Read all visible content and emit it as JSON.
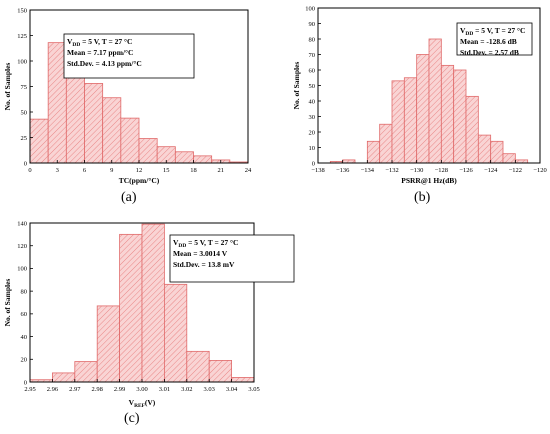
{
  "colors": {
    "bar_fill": "#f9d4d4",
    "bar_stroke": "#e06a6a",
    "hatch": "#e98686",
    "axis": "#000000",
    "box_border": "#000000"
  },
  "chart_data": [
    {
      "type": "bar",
      "panel": "(a)",
      "xlabel": "TC(ppm/°C)",
      "ylabel": "No. of Samples",
      "xlim": [
        0,
        24
      ],
      "ylim": [
        0,
        150
      ],
      "xticks": [
        "0",
        "3",
        "6",
        "9",
        "12",
        "15",
        "18",
        "21",
        "24"
      ],
      "yticks": [
        "0",
        "25",
        "50",
        "75",
        "100",
        "125",
        "150"
      ],
      "bin_edges": [
        0,
        2,
        4,
        6,
        8,
        10,
        12,
        14,
        16,
        18,
        20,
        22,
        24
      ],
      "values": [
        43,
        118,
        91,
        78,
        64,
        44,
        24,
        16,
        11,
        7,
        3,
        1
      ],
      "annotation": [
        "V_DD = 5 V, T = 27 °C",
        "Mean = 7.17 ppm/°C",
        "Std.Dev. = 4.13 ppm/°C"
      ]
    },
    {
      "type": "bar",
      "panel": "(b)",
      "xlabel": "PSRR@1 Hz(dB)",
      "ylabel": "No. of Samples",
      "xlim": [
        -138,
        -120
      ],
      "ylim": [
        0,
        100
      ],
      "xticks": [
        "−138",
        "−136",
        "−134",
        "−132",
        "−130",
        "−128",
        "−126",
        "−124",
        "−122",
        "−120"
      ],
      "yticks": [
        "0",
        "10",
        "20",
        "30",
        "40",
        "50",
        "60",
        "70",
        "80",
        "90",
        "100"
      ],
      "bin_edges": [
        -137,
        -136,
        -135,
        -134,
        -133,
        -132,
        -131,
        -130,
        -129,
        -128,
        -127,
        -126,
        -125,
        -124,
        -123,
        -122,
        -121
      ],
      "values": [
        1,
        2,
        0,
        14,
        25,
        53,
        55,
        70,
        80,
        63,
        60,
        43,
        18,
        14,
        6,
        2
      ],
      "annotation": [
        "V_DD = 5 V, T = 27 °C",
        "Mean = -128.6 dB",
        "Std.Dev. = 2.57 dB"
      ]
    },
    {
      "type": "bar",
      "panel": "(c)",
      "xlabel": "V_REF(V)",
      "ylabel": "No. of Samples",
      "xlim": [
        2.95,
        3.05
      ],
      "ylim": [
        0,
        140
      ],
      "xticks": [
        "2.95",
        "2.96",
        "2.97",
        "2.98",
        "2.99",
        "3.00",
        "3.01",
        "3.02",
        "3.03",
        "3.04",
        "3.05"
      ],
      "yticks": [
        "0",
        "20",
        "40",
        "60",
        "80",
        "100",
        "120",
        "140"
      ],
      "bin_edges": [
        2.95,
        2.96,
        2.97,
        2.98,
        2.99,
        3.0,
        3.01,
        3.02,
        3.03,
        3.04,
        3.05
      ],
      "values": [
        2,
        8,
        18,
        67,
        130,
        139,
        86,
        27,
        19,
        4
      ],
      "annotation": [
        "V_DD = 5 V, T = 27 °C",
        "Mean = 3.0014 V",
        "Std.Dev. = 13.8 mV"
      ]
    }
  ]
}
